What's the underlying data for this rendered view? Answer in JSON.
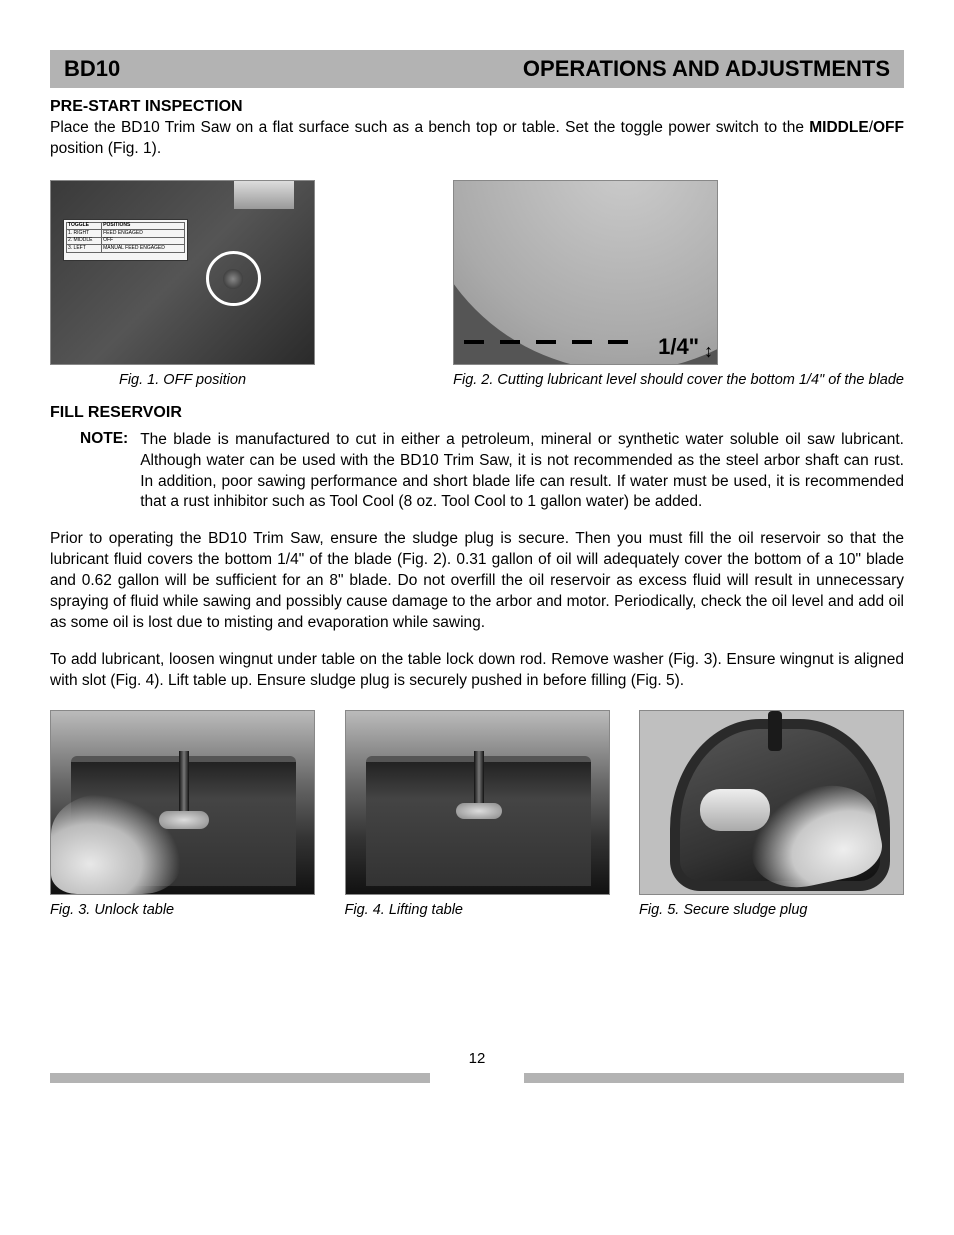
{
  "header": {
    "model": "BD10",
    "section": "OPERATIONS AND ADJUSTMENTS"
  },
  "prestart": {
    "heading": "PRE-START INSPECTION",
    "line1_a": "Place the BD10 Trim Saw on a flat surface such as a bench top or table. Set the toggle power switch to the ",
    "line1_bold": "MIDDLE",
    "line1_slash": "/",
    "line1_bold2": "OFF",
    "line1_c": " position (Fig. 1)."
  },
  "fig1": {
    "caption": "Fig. 1. OFF position",
    "label_header_left": "TOGGLE",
    "label_header_right": "POSITIONS",
    "label_r1a": "1. RIGHT",
    "label_r1b": "FEED ENGAGED",
    "label_r2a": "2. MIDDLE",
    "label_r2b": "OFF",
    "label_r3a": "3. LEFT",
    "label_r3b": "MANUAL FEED ENGAGED"
  },
  "fig2": {
    "caption": "Fig. 2. Cutting lubricant level should cover the bottom 1/4\" of the blade",
    "measurement": "1/4\""
  },
  "fill": {
    "heading": "FILL RESERVOIR",
    "note_label": "NOTE:",
    "note_body": "The blade is manufactured to cut in either a petroleum, mineral or synthetic water soluble oil saw lubricant. Although water can be used with the BD10 Trim Saw, it is not recommended as the steel arbor shaft can rust. In addition, poor sawing performance and short blade life can result.  If water must be used, it is recommended that a rust inhibitor such as Tool Cool (8 oz. Tool Cool to 1 gallon water) be added.",
    "para1": "Prior to operating the BD10 Trim Saw, ensure the sludge plug is secure. Then you must fill the oil reservoir so that the lubricant fluid covers the bottom 1/4\" of the blade (Fig. 2). 0.31 gallon of oil will adequately cover the bottom of a 10\" blade and 0.62 gallon will be sufficient for  an 8\" blade. Do not overfill the oil reservoir as excess fluid will result in unnecessary spraying of fluid while sawing and possibly cause damage to the arbor and motor. Periodically, check the oil level and add oil as some oil is lost due to misting and evaporation while sawing.",
    "para2": "To add lubricant, loosen wingnut under table on the table lock down rod. Remove washer (Fig. 3). Ensure wingnut is aligned with slot (Fig. 4). Lift table up. Ensure sludge plug is securely pushed in before filling (Fig. 5)."
  },
  "fig3": {
    "caption": "Fig. 3. Unlock table"
  },
  "fig4": {
    "caption": "Fig. 4. Lifting table"
  },
  "fig5": {
    "caption": "Fig. 5. Secure sludge plug"
  },
  "page_number": "12",
  "colors": {
    "header_bg": "#b3b3b3",
    "text": "#000000",
    "page_bg": "#ffffff"
  }
}
